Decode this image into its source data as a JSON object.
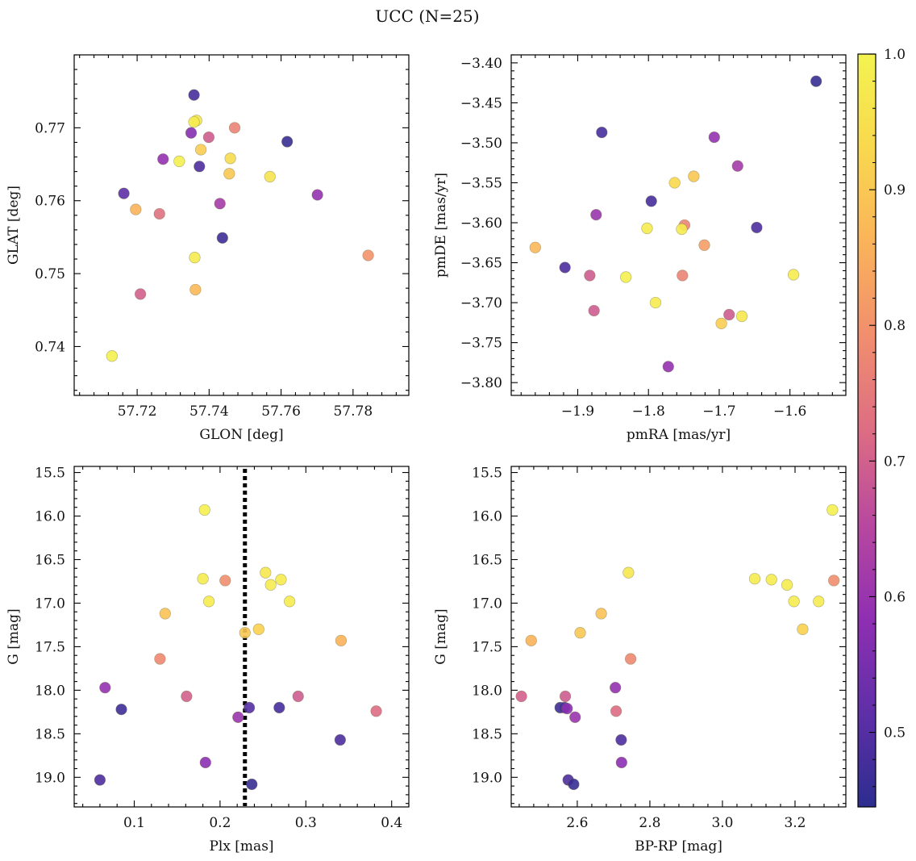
{
  "title": "UCC (N=25)",
  "colormap": {
    "name": "plasma",
    "range": [
      0.445,
      1.0
    ],
    "stops": [
      "#2c2d8f",
      "#5f2fa8",
      "#8f2fb2",
      "#b8489f",
      "#dd6d83",
      "#f18e6e",
      "#fab35a",
      "#f9d84e",
      "#f3f350"
    ],
    "ticks": [
      0.5,
      0.6,
      0.7,
      0.8,
      0.9,
      1.0
    ],
    "tick_labels": [
      "0.5",
      "0.6",
      "0.7",
      "0.8",
      "0.9",
      "1.0"
    ]
  },
  "chart_data": [
    {
      "type": "scatter",
      "xlabel": "GLON [deg]",
      "ylabel": "GLAT [deg]",
      "xlim": [
        57.7025,
        57.7955
      ],
      "ylim": [
        0.7333,
        0.78
      ],
      "xticks": [
        57.72,
        57.74,
        57.76,
        57.78
      ],
      "xtick_labels": [
        "57.72",
        "57.74",
        "57.76",
        "57.78"
      ],
      "yticks": [
        0.74,
        0.75,
        0.76,
        0.77
      ],
      "ytick_labels": [
        "0.74",
        "0.75",
        "0.76",
        "0.77"
      ],
      "points": [
        {
          "x": 57.7358,
          "y": 0.7745,
          "c": 0.48
        },
        {
          "x": 57.7365,
          "y": 0.771,
          "c": 0.97
        },
        {
          "x": 57.7358,
          "y": 0.7708,
          "c": 0.98
        },
        {
          "x": 57.7471,
          "y": 0.77,
          "c": 0.77
        },
        {
          "x": 57.735,
          "y": 0.7693,
          "c": 0.57
        },
        {
          "x": 57.7399,
          "y": 0.7687,
          "c": 0.69
        },
        {
          "x": 57.7617,
          "y": 0.7681,
          "c": 0.46
        },
        {
          "x": 57.7377,
          "y": 0.767,
          "c": 0.91
        },
        {
          "x": 57.7272,
          "y": 0.7657,
          "c": 0.59
        },
        {
          "x": 57.7459,
          "y": 0.7658,
          "c": 0.94
        },
        {
          "x": 57.7317,
          "y": 0.7654,
          "c": 0.99
        },
        {
          "x": 57.7373,
          "y": 0.7647,
          "c": 0.49
        },
        {
          "x": 57.7456,
          "y": 0.7637,
          "c": 0.9
        },
        {
          "x": 57.7569,
          "y": 0.7633,
          "c": 0.96
        },
        {
          "x": 57.7163,
          "y": 0.761,
          "c": 0.51
        },
        {
          "x": 57.7701,
          "y": 0.7608,
          "c": 0.59
        },
        {
          "x": 57.743,
          "y": 0.7596,
          "c": 0.62
        },
        {
          "x": 57.7196,
          "y": 0.7588,
          "c": 0.86
        },
        {
          "x": 57.7262,
          "y": 0.7582,
          "c": 0.73
        },
        {
          "x": 57.7437,
          "y": 0.7549,
          "c": 0.47
        },
        {
          "x": 57.7842,
          "y": 0.7525,
          "c": 0.8
        },
        {
          "x": 57.736,
          "y": 0.7522,
          "c": 0.98
        },
        {
          "x": 57.7362,
          "y": 0.7478,
          "c": 0.87
        },
        {
          "x": 57.7209,
          "y": 0.7472,
          "c": 0.7
        },
        {
          "x": 57.713,
          "y": 0.7387,
          "c": 0.99
        }
      ]
    },
    {
      "type": "scatter",
      "xlabel": "pmRA [mas/yr]",
      "ylabel": "pmDE [mas/yr]",
      "xlim": [
        -1.994,
        -1.521
      ],
      "ylim": [
        -3.816,
        -3.39
      ],
      "xticks": [
        -1.9,
        -1.8,
        -1.7,
        -1.6
      ],
      "xtick_labels": [
        "−1.9",
        "−1.8",
        "−1.7",
        "−1.6"
      ],
      "yticks": [
        -3.8,
        -3.75,
        -3.7,
        -3.65,
        -3.6,
        -3.55,
        -3.5,
        -3.45,
        -3.4
      ],
      "ytick_labels": [
        "−3.80",
        "−3.75",
        "−3.70",
        "−3.65",
        "−3.60",
        "−3.55",
        "−3.50",
        "−3.45",
        "−3.40"
      ],
      "points": [
        {
          "x": -1.563,
          "y": -3.423,
          "c": 0.46
        },
        {
          "x": -1.866,
          "y": -3.487,
          "c": 0.48
        },
        {
          "x": -1.707,
          "y": -3.493,
          "c": 0.59
        },
        {
          "x": -1.674,
          "y": -3.529,
          "c": 0.62
        },
        {
          "x": -1.736,
          "y": -3.542,
          "c": 0.9
        },
        {
          "x": -1.763,
          "y": -3.55,
          "c": 0.93
        },
        {
          "x": -1.796,
          "y": -3.573,
          "c": 0.48
        },
        {
          "x": -1.874,
          "y": -3.59,
          "c": 0.6
        },
        {
          "x": -1.749,
          "y": -3.603,
          "c": 0.77
        },
        {
          "x": -1.647,
          "y": -3.606,
          "c": 0.49
        },
        {
          "x": -1.802,
          "y": -3.607,
          "c": 0.98
        },
        {
          "x": -1.753,
          "y": -3.608,
          "c": 0.98
        },
        {
          "x": -1.721,
          "y": -3.628,
          "c": 0.82
        },
        {
          "x": -1.96,
          "y": -3.631,
          "c": 0.87
        },
        {
          "x": -1.918,
          "y": -3.656,
          "c": 0.49
        },
        {
          "x": -1.595,
          "y": -3.665,
          "c": 0.98
        },
        {
          "x": -1.883,
          "y": -3.666,
          "c": 0.69
        },
        {
          "x": -1.752,
          "y": -3.666,
          "c": 0.77
        },
        {
          "x": -1.832,
          "y": -3.668,
          "c": 0.99
        },
        {
          "x": -1.79,
          "y": -3.7,
          "c": 0.98
        },
        {
          "x": -1.877,
          "y": -3.71,
          "c": 0.69
        },
        {
          "x": -1.686,
          "y": -3.715,
          "c": 0.69
        },
        {
          "x": -1.668,
          "y": -3.717,
          "c": 0.97
        },
        {
          "x": -1.697,
          "y": -3.726,
          "c": 0.91
        },
        {
          "x": -1.772,
          "y": -3.78,
          "c": 0.59
        }
      ]
    },
    {
      "type": "scatter",
      "xlabel": "Plx [mas]",
      "ylabel": "G [mag]",
      "xlim": [
        0.03,
        0.42
      ],
      "ylim": [
        19.34,
        15.43
      ],
      "y_inverted": true,
      "xticks": [
        0.1,
        0.2,
        0.3,
        0.4
      ],
      "xtick_labels": [
        "0.1",
        "0.2",
        "0.3",
        "0.4"
      ],
      "yticks": [
        15.5,
        16.0,
        16.5,
        17.0,
        17.5,
        18.0,
        18.5,
        19.0
      ],
      "ytick_labels": [
        "15.5",
        "16.0",
        "16.5",
        "17.0",
        "17.5",
        "18.0",
        "18.5",
        "19.0"
      ],
      "vline": {
        "x": 0.229,
        "style": "dotted"
      },
      "points": [
        {
          "x": 0.182,
          "y": 15.93,
          "c": 0.99
        },
        {
          "x": 0.253,
          "y": 16.65,
          "c": 0.97
        },
        {
          "x": 0.18,
          "y": 16.72,
          "c": 0.98
        },
        {
          "x": 0.206,
          "y": 16.74,
          "c": 0.79
        },
        {
          "x": 0.271,
          "y": 16.73,
          "c": 0.98
        },
        {
          "x": 0.259,
          "y": 16.79,
          "c": 0.98
        },
        {
          "x": 0.187,
          "y": 16.98,
          "c": 0.98
        },
        {
          "x": 0.281,
          "y": 16.98,
          "c": 0.98
        },
        {
          "x": 0.136,
          "y": 17.12,
          "c": 0.89
        },
        {
          "x": 0.245,
          "y": 17.3,
          "c": 0.92
        },
        {
          "x": 0.229,
          "y": 17.34,
          "c": 0.9
        },
        {
          "x": 0.341,
          "y": 17.43,
          "c": 0.86
        },
        {
          "x": 0.13,
          "y": 17.64,
          "c": 0.78
        },
        {
          "x": 0.066,
          "y": 17.97,
          "c": 0.59
        },
        {
          "x": 0.161,
          "y": 18.07,
          "c": 0.7
        },
        {
          "x": 0.291,
          "y": 18.07,
          "c": 0.69
        },
        {
          "x": 0.234,
          "y": 18.2,
          "c": 0.5
        },
        {
          "x": 0.269,
          "y": 18.2,
          "c": 0.48
        },
        {
          "x": 0.085,
          "y": 18.22,
          "c": 0.47
        },
        {
          "x": 0.382,
          "y": 18.24,
          "c": 0.72
        },
        {
          "x": 0.221,
          "y": 18.31,
          "c": 0.6
        },
        {
          "x": 0.34,
          "y": 18.57,
          "c": 0.49
        },
        {
          "x": 0.183,
          "y": 18.83,
          "c": 0.58
        },
        {
          "x": 0.06,
          "y": 19.03,
          "c": 0.49
        },
        {
          "x": 0.237,
          "y": 19.08,
          "c": 0.46
        }
      ]
    },
    {
      "type": "scatter",
      "xlabel": "BP-RP [mag]",
      "ylabel": "G [mag]",
      "xlim": [
        2.418,
        3.34
      ],
      "ylim": [
        19.34,
        15.43
      ],
      "y_inverted": true,
      "xticks": [
        2.6,
        2.8,
        3.0,
        3.2
      ],
      "xtick_labels": [
        "2.6",
        "2.8",
        "3.0",
        "3.2"
      ],
      "yticks": [
        15.5,
        16.0,
        16.5,
        17.0,
        17.5,
        18.0,
        18.5,
        19.0
      ],
      "ytick_labels": [
        "15.5",
        "16.0",
        "16.5",
        "17.0",
        "17.5",
        "18.0",
        "18.5",
        "19.0"
      ],
      "points": [
        {
          "x": 3.303,
          "y": 15.93,
          "c": 0.99
        },
        {
          "x": 2.741,
          "y": 16.65,
          "c": 0.97
        },
        {
          "x": 3.089,
          "y": 16.72,
          "c": 0.98
        },
        {
          "x": 3.135,
          "y": 16.73,
          "c": 0.98
        },
        {
          "x": 3.307,
          "y": 16.74,
          "c": 0.79
        },
        {
          "x": 3.178,
          "y": 16.79,
          "c": 0.98
        },
        {
          "x": 3.197,
          "y": 16.98,
          "c": 0.98
        },
        {
          "x": 3.265,
          "y": 16.98,
          "c": 0.98
        },
        {
          "x": 2.666,
          "y": 17.12,
          "c": 0.89
        },
        {
          "x": 3.221,
          "y": 17.3,
          "c": 0.92
        },
        {
          "x": 2.608,
          "y": 17.34,
          "c": 0.9
        },
        {
          "x": 2.473,
          "y": 17.43,
          "c": 0.86
        },
        {
          "x": 2.747,
          "y": 17.64,
          "c": 0.78
        },
        {
          "x": 2.705,
          "y": 17.97,
          "c": 0.59
        },
        {
          "x": 2.446,
          "y": 18.07,
          "c": 0.7
        },
        {
          "x": 2.567,
          "y": 18.07,
          "c": 0.69
        },
        {
          "x": 2.553,
          "y": 18.2,
          "c": 0.47
        },
        {
          "x": 2.565,
          "y": 18.2,
          "c": 0.48
        },
        {
          "x": 2.572,
          "y": 18.21,
          "c": 0.58
        },
        {
          "x": 2.707,
          "y": 18.24,
          "c": 0.72
        },
        {
          "x": 2.594,
          "y": 18.31,
          "c": 0.6
        },
        {
          "x": 2.721,
          "y": 18.57,
          "c": 0.49
        },
        {
          "x": 2.722,
          "y": 18.83,
          "c": 0.58
        },
        {
          "x": 2.575,
          "y": 19.03,
          "c": 0.49
        },
        {
          "x": 2.59,
          "y": 19.08,
          "c": 0.46
        }
      ]
    }
  ]
}
